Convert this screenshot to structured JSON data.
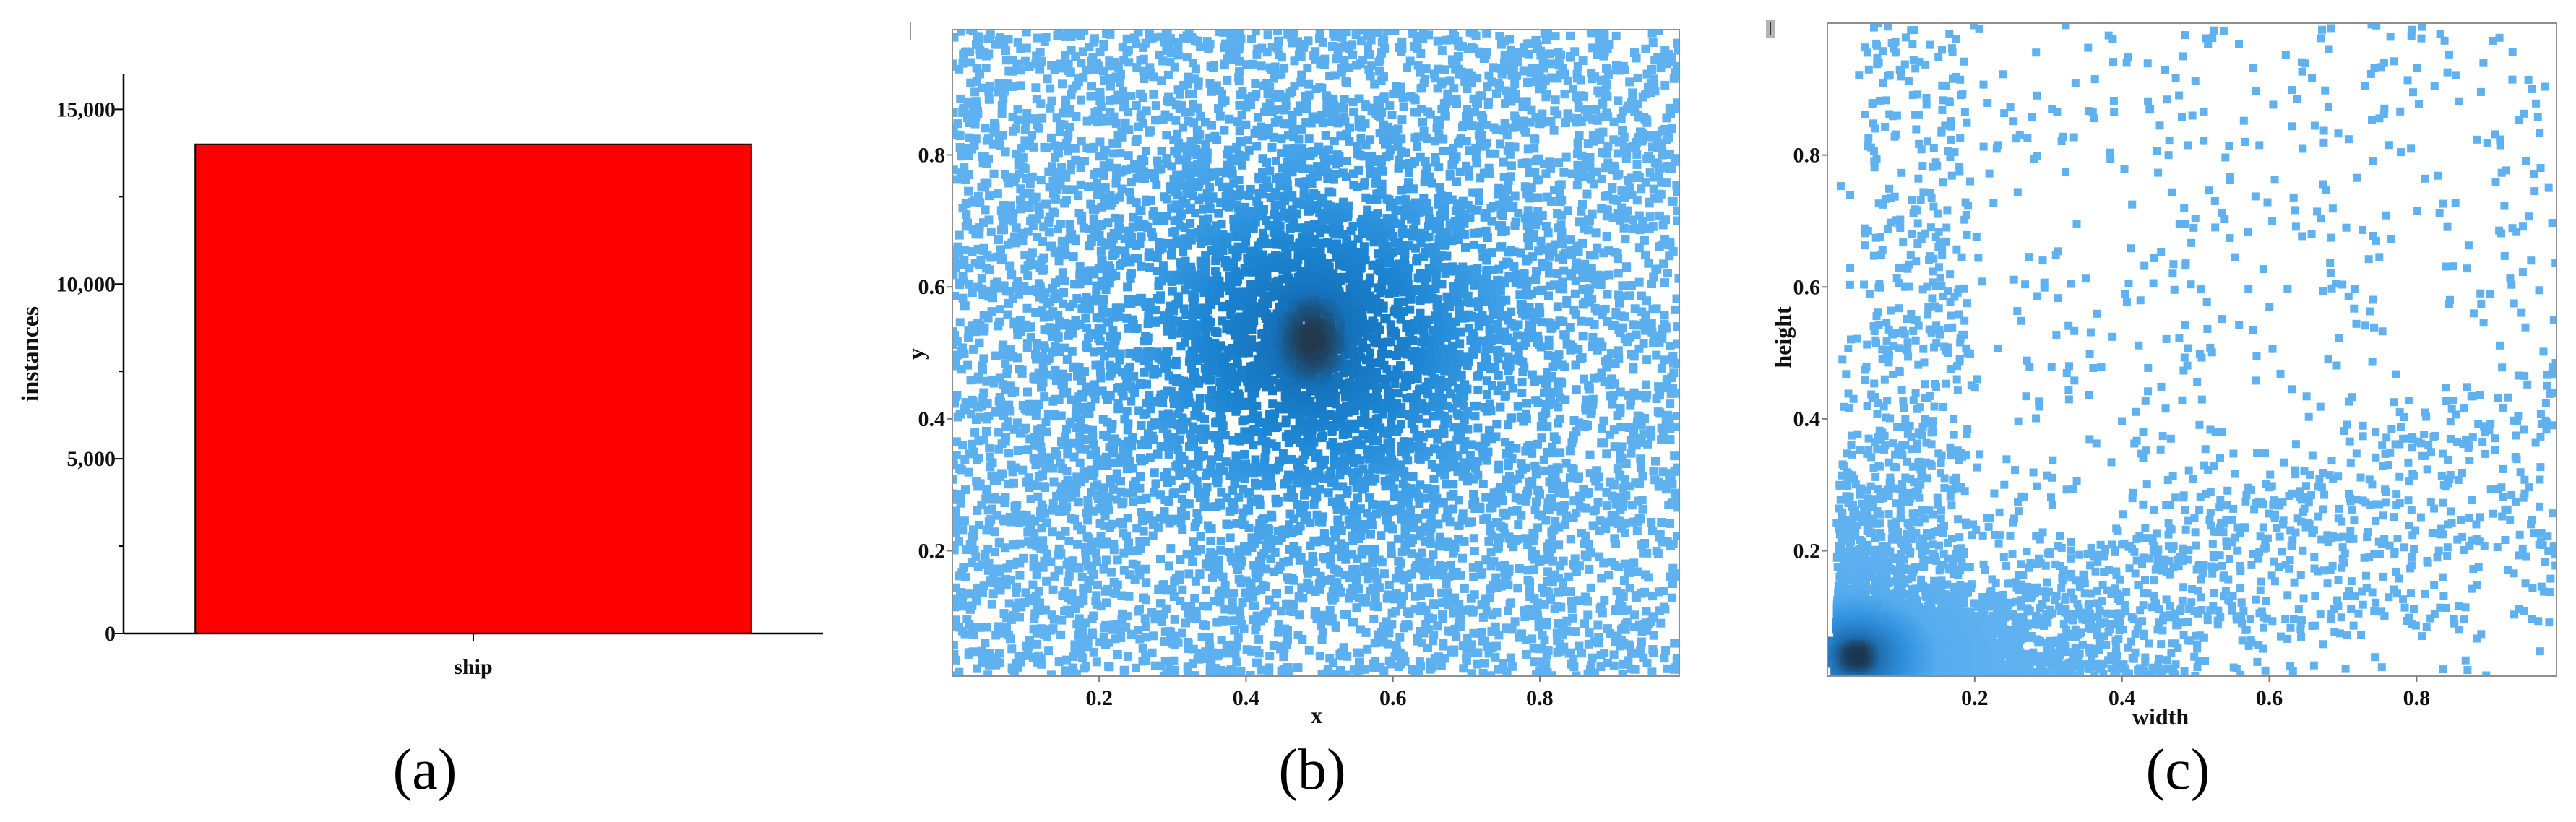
{
  "colors": {
    "background": "#ffffff",
    "axis": "#000000",
    "frame": "#8f8f8f"
  },
  "chart_data": [
    {
      "caption": "(a)",
      "type": "bar",
      "categories": [
        "ship"
      ],
      "values": [
        14000
      ],
      "ylabel": "instances",
      "ylim": [
        0,
        16000
      ],
      "yticks": [
        0,
        5000,
        10000,
        15000
      ],
      "ytick_labels": [
        "0",
        "5,000",
        "10,000",
        "15,000"
      ],
      "bar_color": "#ff0000",
      "grid": false
    },
    {
      "caption": "(b)",
      "type": "scatter",
      "xlabel": "x",
      "ylabel": "y",
      "xlim": [
        0,
        0.99
      ],
      "ylim": [
        0.01,
        0.99
      ],
      "xticks": [
        0.2,
        0.4,
        0.6,
        0.8
      ],
      "xtick_labels": [
        "0.2",
        "0.4",
        "0.6",
        "0.8"
      ],
      "yticks": [
        0.2,
        0.4,
        0.6,
        0.8
      ],
      "ytick_labels": [
        "0.2",
        "0.4",
        "0.6",
        "0.8"
      ],
      "density_peak": [
        0.49,
        0.52
      ],
      "density_colors": [
        "#5fb1ef",
        "#3f9fe7",
        "#1d86d3",
        "#1571ba",
        "#22384b"
      ],
      "grid": false
    },
    {
      "caption": "(c)",
      "type": "scatter",
      "xlabel": "width",
      "ylabel": "height",
      "xlim": [
        0,
        0.99
      ],
      "ylim": [
        0.01,
        1.0
      ],
      "xticks": [
        0.2,
        0.4,
        0.6,
        0.8
      ],
      "xtick_labels": [
        "0.2",
        "0.4",
        "0.6",
        "0.8"
      ],
      "yticks": [
        0.2,
        0.4,
        0.6,
        0.8
      ],
      "ytick_labels": [
        "0.2",
        "0.4",
        "0.6",
        "0.8"
      ],
      "density_peak": [
        0.04,
        0.04
      ],
      "density_colors": [
        "#5fb1ef",
        "#55acee",
        "#2f8fdc",
        "#1f6fb0",
        "#1b3650"
      ],
      "grid": false
    }
  ]
}
